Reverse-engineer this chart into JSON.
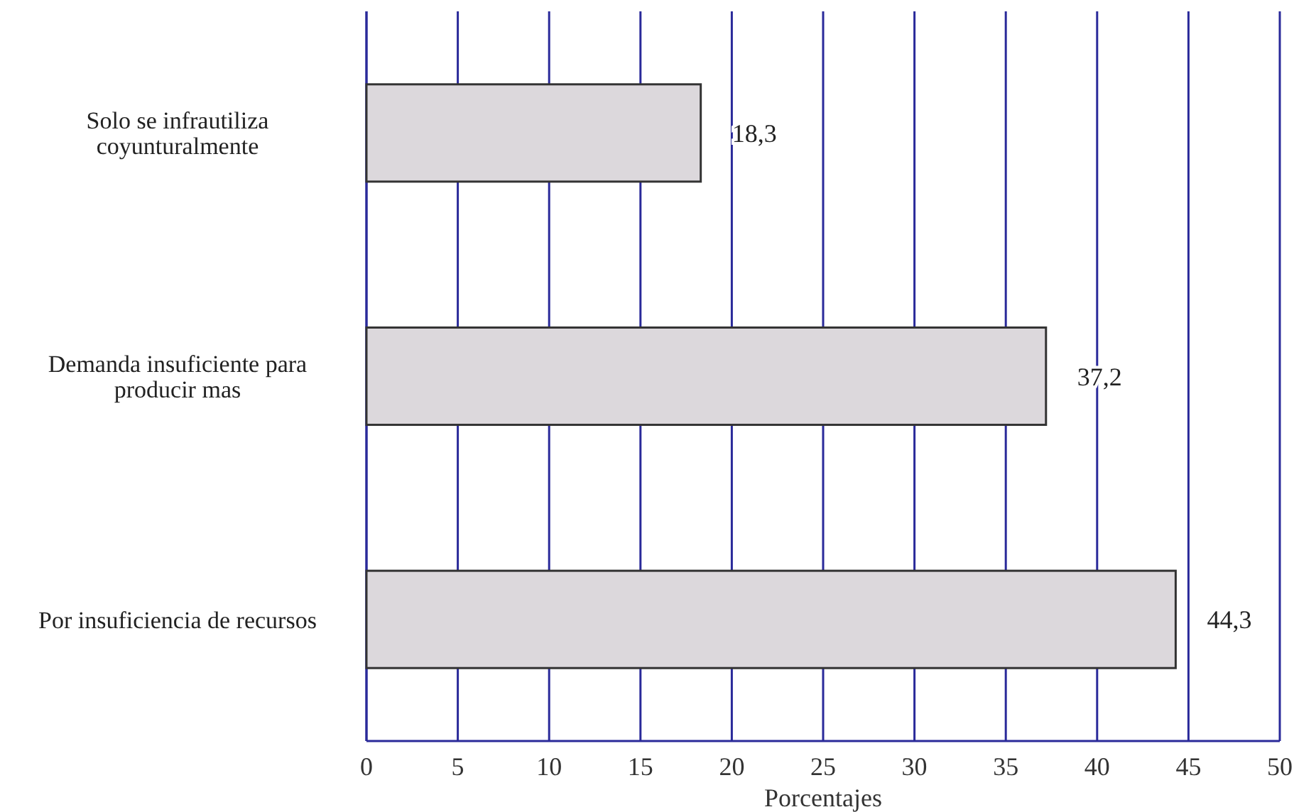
{
  "chart_data": {
    "type": "bar",
    "orientation": "horizontal",
    "xlabel": "Porcentajes",
    "categories": [
      "Solo se infrautiliza\ncoyunturalmente",
      "Demanda insuficiente para\nproducir mas",
      "Por insuficiencia de recursos"
    ],
    "values": [
      18.3,
      37.2,
      44.3
    ],
    "value_labels": [
      "18,3",
      "37,2",
      "44,3"
    ],
    "color": "#dcd8dc",
    "xlim": [
      0,
      50
    ],
    "xticks": [
      0,
      5,
      10,
      15,
      20,
      25,
      30,
      35,
      40,
      45,
      50
    ],
    "grid": "x"
  }
}
